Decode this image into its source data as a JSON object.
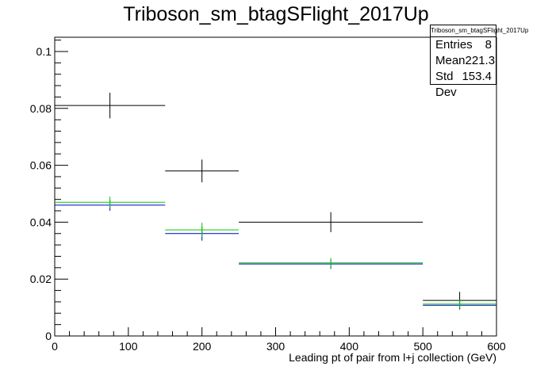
{
  "chart_data": {
    "type": "histogram",
    "title": "Triboson_sm_btagSFlight_2017Up",
    "xlabel": "Leading pt of pair from l+j collection (GeV)",
    "ylabel": "",
    "xlim": [
      0,
      600
    ],
    "ylim": [
      0,
      0.105
    ],
    "x_ticks": [
      0,
      100,
      200,
      300,
      400,
      500,
      600
    ],
    "y_ticks": [
      0,
      0.02,
      0.04,
      0.06,
      0.08,
      0.1
    ],
    "x_tick_labels": [
      "0",
      "100",
      "200",
      "300",
      "400",
      "500",
      "600"
    ],
    "y_tick_labels": [
      "0",
      "0.02",
      "0.04",
      "0.06",
      "0.08",
      "0.1"
    ],
    "bin_edges": [
      0,
      150,
      250,
      500,
      600
    ],
    "series": [
      {
        "color": "#000000",
        "values": [
          0.081,
          0.058,
          0.04,
          0.0125
        ],
        "errors": [
          0.0045,
          0.004,
          0.0035,
          0.003
        ]
      },
      {
        "color": "#0000cc",
        "values": [
          0.046,
          0.036,
          0.0253,
          0.0108
        ],
        "errors": [
          0.002,
          0.0025,
          0.0017,
          0.0015
        ]
      },
      {
        "color": "#00cc00",
        "values": [
          0.047,
          0.0373,
          0.0257,
          0.0112
        ],
        "errors": [
          0.002,
          0.0025,
          0.0017,
          0.0015
        ]
      }
    ],
    "grid": false,
    "legend_position": "top-right"
  },
  "stats_box": {
    "title": "Triboson_sm_btagSFlight_2017Up",
    "entries_label": "Entries",
    "entries_value": "8",
    "mean_label": "Mean",
    "mean_value": "221.3",
    "std_label": "Std Dev",
    "std_value": "153.4"
  }
}
